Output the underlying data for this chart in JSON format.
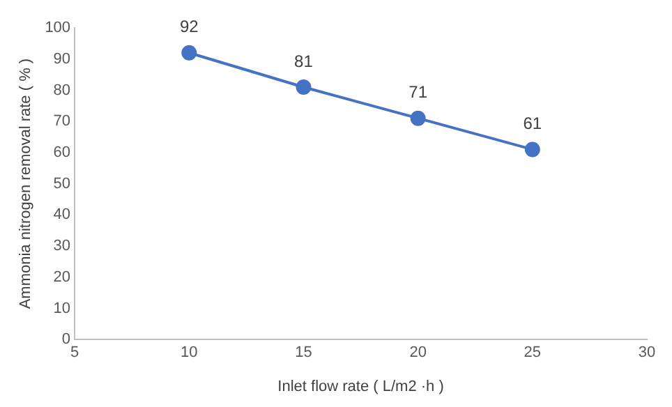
{
  "chart_data": {
    "type": "line",
    "xlabel": "Inlet flow rate ( L/m2 ·h )",
    "ylabel": "Ammonia nitrogen removal rate ( % )",
    "x": [
      10,
      15,
      20,
      25
    ],
    "series": [
      {
        "color": "#4472c4",
        "values": [
          92,
          81,
          71,
          61
        ]
      }
    ],
    "xlim": [
      5,
      30
    ],
    "xticks": [
      5,
      10,
      15,
      20,
      25,
      30
    ],
    "ylim": [
      0,
      100
    ],
    "yticks": [
      0,
      10,
      20,
      30,
      40,
      50,
      60,
      70,
      80,
      90,
      100
    ],
    "grid": false,
    "legend": false,
    "marker": "circle",
    "line_style": "solid",
    "data_labels": true
  }
}
